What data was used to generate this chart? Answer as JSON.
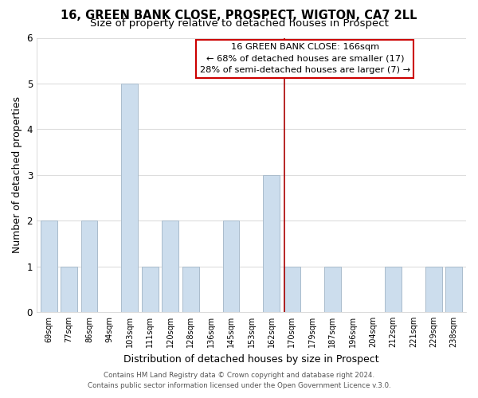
{
  "title": "16, GREEN BANK CLOSE, PROSPECT, WIGTON, CA7 2LL",
  "subtitle": "Size of property relative to detached houses in Prospect",
  "xlabel": "Distribution of detached houses by size in Prospect",
  "ylabel": "Number of detached properties",
  "bar_labels": [
    "69sqm",
    "77sqm",
    "86sqm",
    "94sqm",
    "103sqm",
    "111sqm",
    "120sqm",
    "128sqm",
    "136sqm",
    "145sqm",
    "153sqm",
    "162sqm",
    "170sqm",
    "179sqm",
    "187sqm",
    "196sqm",
    "204sqm",
    "212sqm",
    "221sqm",
    "229sqm",
    "238sqm"
  ],
  "bar_heights": [
    2,
    1,
    2,
    0,
    5,
    1,
    2,
    1,
    0,
    2,
    0,
    3,
    1,
    0,
    1,
    0,
    0,
    1,
    0,
    1,
    1
  ],
  "bar_color": "#ccdded",
  "bar_edge_color": "#aabccc",
  "vline_x_index": 11.62,
  "vline_color": "#aa0000",
  "annotation_title": "16 GREEN BANK CLOSE: 166sqm",
  "annotation_line1": "← 68% of detached houses are smaller (17)",
  "annotation_line2": "28% of semi-detached houses are larger (7) →",
  "annotation_box_facecolor": "#ffffff",
  "annotation_box_edgecolor": "#cc0000",
  "ylim": [
    0,
    6
  ],
  "yticks": [
    0,
    1,
    2,
    3,
    4,
    5,
    6
  ],
  "footer1": "Contains HM Land Registry data © Crown copyright and database right 2024.",
  "footer2": "Contains public sector information licensed under the Open Government Licence v.3.0.",
  "background_color": "#ffffff",
  "plot_background": "#ffffff",
  "grid_color": "#dddddd"
}
